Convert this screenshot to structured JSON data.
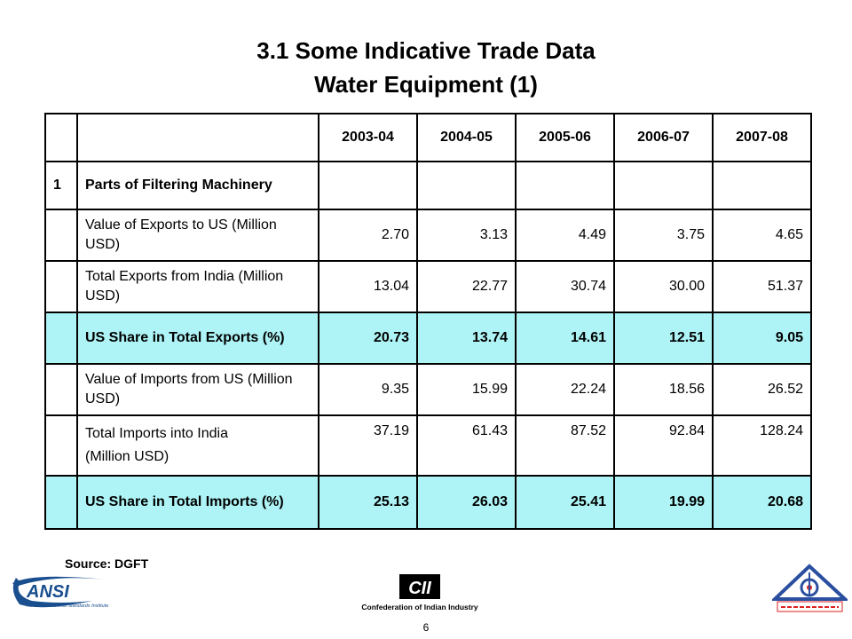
{
  "title": {
    "line1": "3.1 Some Indicative Trade Data",
    "line2": "Water Equipment (1)"
  },
  "table": {
    "years": [
      "2003-04",
      "2004-05",
      "2005-06",
      "2006-07",
      "2007-08"
    ],
    "rows": [
      {
        "num": "1",
        "label": "Parts of Filtering Machinery",
        "values": [
          "",
          "",
          "",
          "",
          ""
        ],
        "bold": true,
        "highlight": false
      },
      {
        "num": "",
        "label": "Value of Exports to US (Million USD)",
        "values": [
          "2.70",
          "3.13",
          "4.49",
          "3.75",
          "4.65"
        ],
        "bold": false,
        "highlight": false
      },
      {
        "num": "",
        "label": "Total Exports from India (Million USD)",
        "values": [
          "13.04",
          "22.77",
          "30.74",
          "30.00",
          "51.37"
        ],
        "bold": false,
        "highlight": false
      },
      {
        "num": "",
        "label": "US Share in Total Exports (%)",
        "values": [
          "20.73",
          "13.74",
          "14.61",
          "12.51",
          "9.05"
        ],
        "bold": true,
        "highlight": true
      },
      {
        "num": "",
        "label": "Value of Imports from US (Million USD)",
        "values": [
          "9.35",
          "15.99",
          "22.24",
          "18.56",
          "26.52"
        ],
        "bold": false,
        "highlight": false
      },
      {
        "num": "",
        "label": "Total Imports into India",
        "label2": "(Million USD)",
        "values": [
          "37.19",
          "61.43",
          "87.52",
          "92.84",
          "128.24"
        ],
        "bold": false,
        "highlight": false
      },
      {
        "num": "",
        "label": "US Share in Total Imports (%)",
        "values": [
          "25.13",
          "26.03",
          "25.41",
          "19.99",
          "20.68"
        ],
        "bold": true,
        "highlight": true
      }
    ],
    "highlight_color": "#aef3f5"
  },
  "source": "Source: DGFT",
  "page_number": "6",
  "logos": {
    "ansi": {
      "text": "ANSI",
      "subtext": "American National Standards Institute"
    },
    "cii": {
      "text": "CII",
      "subtext": "Confederation of Indian Industry"
    },
    "bis": {
      "icon": "bis-emblem-icon"
    }
  }
}
